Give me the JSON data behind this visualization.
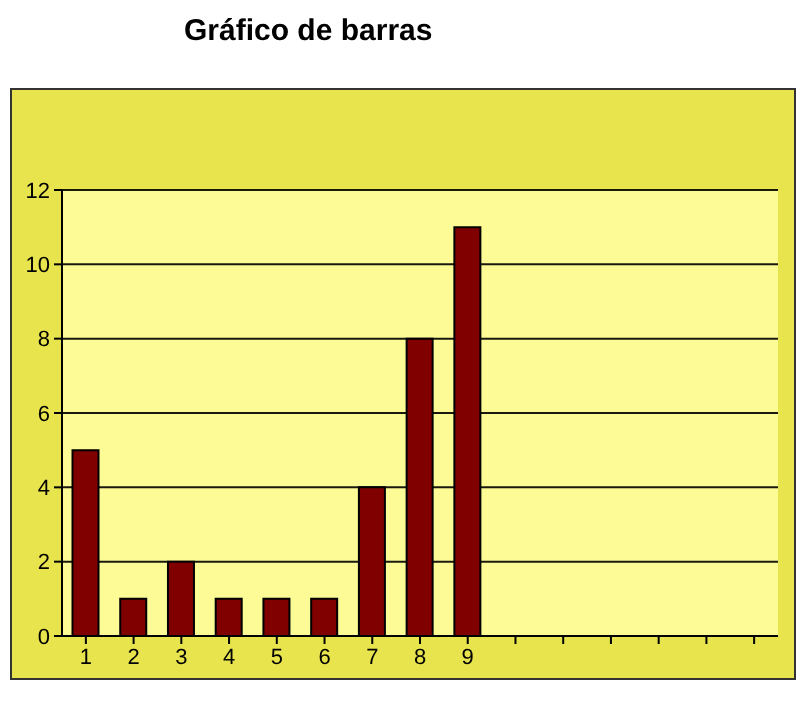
{
  "chart_data": {
    "type": "bar",
    "title": "Gráfico de barras",
    "categories": [
      "1",
      "2",
      "3",
      "4",
      "5",
      "6",
      "7",
      "8",
      "9",
      null,
      null,
      null,
      null,
      null,
      null
    ],
    "values": [
      5,
      1,
      2,
      1,
      1,
      1,
      4,
      8,
      11,
      null,
      null,
      null,
      null,
      null,
      null
    ],
    "color": "#800000",
    "ylim": [
      0,
      12
    ],
    "yticks": [
      0,
      2,
      4,
      6,
      8,
      10,
      12
    ],
    "grid": "y"
  }
}
